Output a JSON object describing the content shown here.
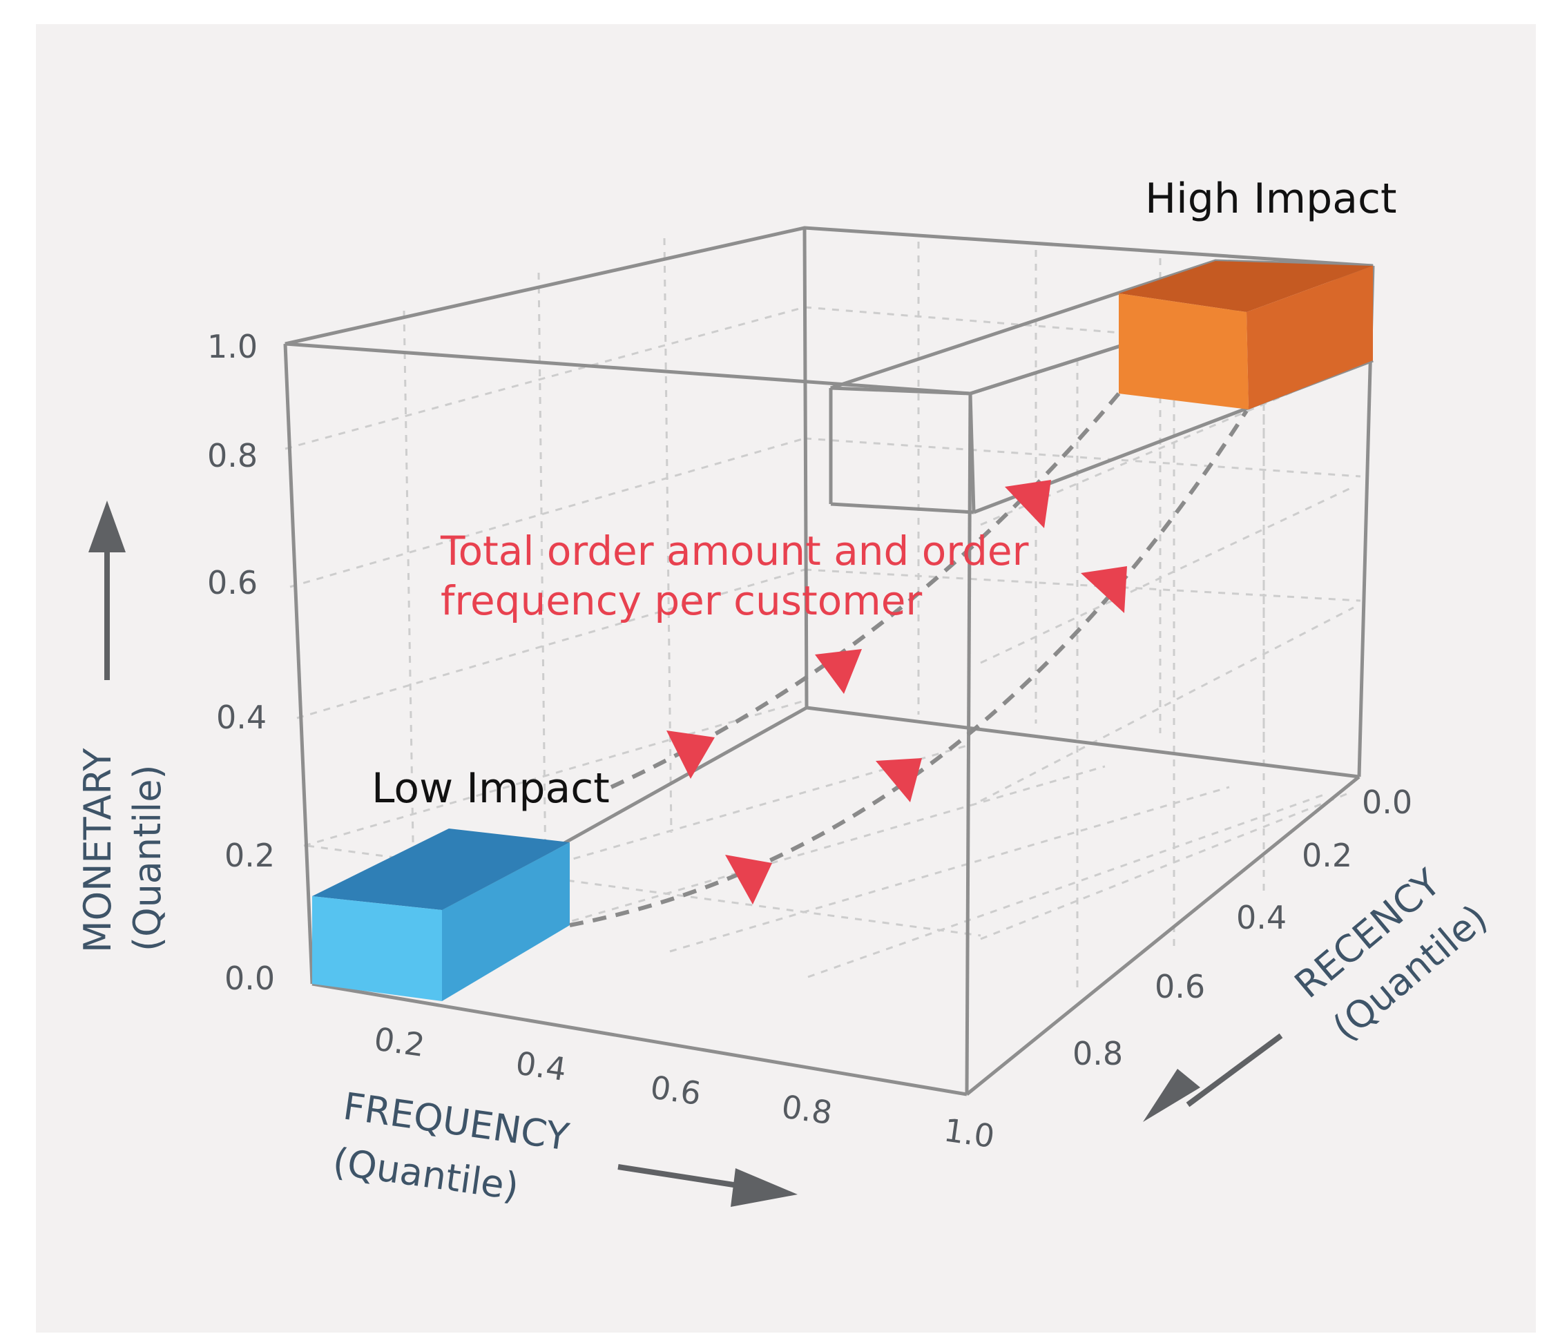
{
  "axes": {
    "monetary": {
      "title": "MONETARY",
      "subtitle": "(Quantile)",
      "ticks": [
        "0.0",
        "0.2",
        "0.4",
        "0.6",
        "0.8",
        "1.0"
      ]
    },
    "frequency": {
      "title": "FREQUENCY",
      "subtitle": "(Quantile)",
      "ticks": [
        "0.2",
        "0.4",
        "0.6",
        "0.8",
        "1.0"
      ]
    },
    "recency": {
      "title": "RECENCY",
      "subtitle": "(Quantile)",
      "ticks": [
        "0.0",
        "0.2",
        "0.4",
        "0.6",
        "0.8"
      ]
    }
  },
  "segments": {
    "high": {
      "label": "High Impact",
      "colors": {
        "front": "#ef8532",
        "side": "#d96829",
        "top": "#c55a22"
      }
    },
    "low": {
      "label": "Low Impact",
      "colors": {
        "front": "#56c3f0",
        "side": "#3ea2d6",
        "top": "#2f7fb6"
      }
    }
  },
  "annotation": {
    "line1": "Total order amount and order",
    "line2": "frequency per customer",
    "color": "#e8414f"
  },
  "colors": {
    "background": "#f3f1f1",
    "frame": "#8e8e8e",
    "axis_title": "#3e5468"
  }
}
